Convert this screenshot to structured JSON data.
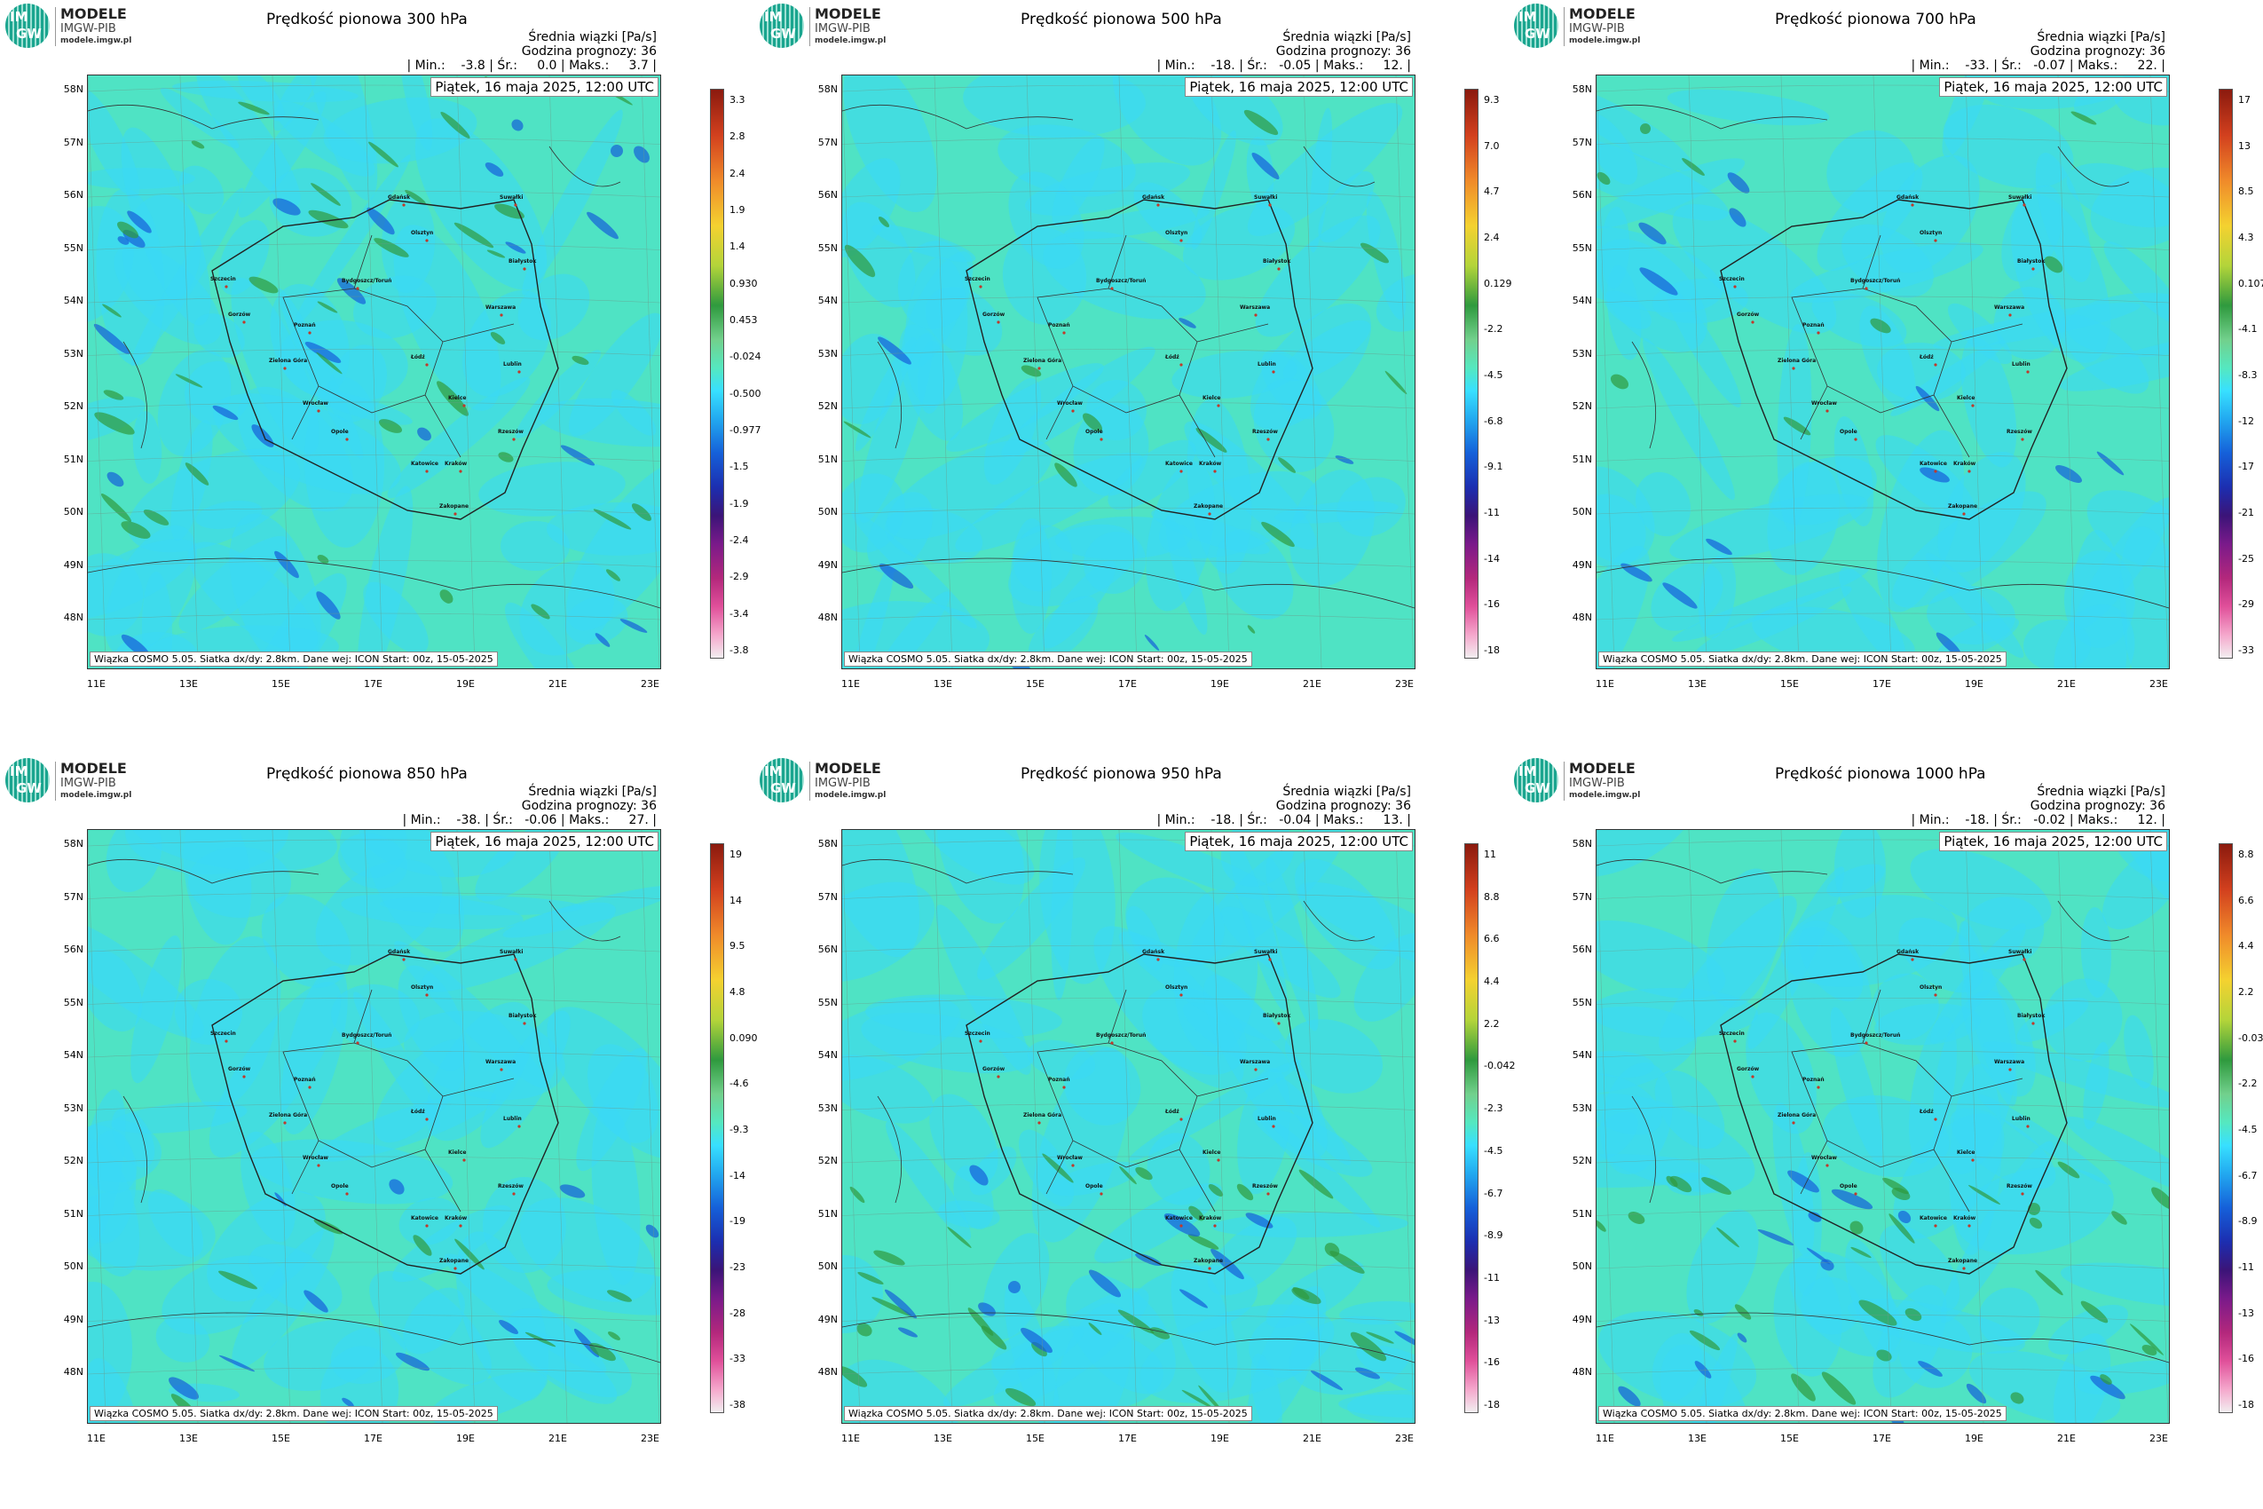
{
  "logo": {
    "im": "IM",
    "gw": "GW",
    "line1": "MODELE",
    "line2": "IMGW-PIB",
    "line3": "modele.imgw.pl"
  },
  "lat_labels": [
    "58N",
    "57N",
    "56N",
    "55N",
    "54N",
    "53N",
    "52N",
    "51N",
    "50N",
    "49N",
    "48N"
  ],
  "lon_labels": [
    "11E",
    "13E",
    "15E",
    "17E",
    "19E",
    "21E",
    "23E"
  ],
  "panels": [
    {
      "title": "Prędkość pionowa 300 hPa",
      "hdr1": "Średnia wiązki [Pa/s]",
      "hdr2": "Godzina prognozy: 36",
      "hdr3": "| Min.:    -3.8 | Śr.:     0.0 | Maks.:     3.7 |",
      "date": "Piątek, 16 maja 2025, 12:00 UTC",
      "foot": "Wiązka COSMO 5.05. Siatka dx/dy: 2.8km. Dane wej: ICON Start: 00z, 15-05-2025",
      "colorbar": [
        "3.3",
        "2.8",
        "2.4",
        "1.9",
        "1.4",
        "0.930",
        "0.453",
        "-0.024",
        "-0.500",
        "-0.977",
        "-1.5",
        "-1.9",
        "-2.4",
        "-2.9",
        "-3.4",
        "-3.8"
      ]
    },
    {
      "title": "Prędkość pionowa 500 hPa",
      "hdr1": "Średnia wiązki [Pa/s]",
      "hdr2": "Godzina prognozy: 36",
      "hdr3": "| Min.:    -18. | Śr.:   -0.05 | Maks.:     12. |",
      "date": "Piątek, 16 maja 2025, 12:00 UTC",
      "foot": "Wiązka COSMO 5.05. Siatka dx/dy: 2.8km. Dane wej: ICON Start: 00z, 15-05-2025",
      "colorbar": [
        "9.3",
        "7.0",
        "4.7",
        "2.4",
        "0.129",
        "-2.2",
        "-4.5",
        "-6.8",
        "-9.1",
        "-11",
        "-14",
        "-16",
        "-18"
      ]
    },
    {
      "title": "Prędkość pionowa 700 hPa",
      "hdr1": "Średnia wiązki [Pa/s]",
      "hdr2": "Godzina prognozy: 36",
      "hdr3": "| Min.:    -33. | Śr.:   -0.07 | Maks.:     22. |",
      "date": "Piątek, 16 maja 2025, 12:00 UTC",
      "foot": "Wiązka COSMO 5.05. Siatka dx/dy: 2.8km. Dane wej: ICON Start: 00z, 15-05-2025",
      "colorbar": [
        "17",
        "13",
        "8.5",
        "4.3",
        "0.107",
        "-4.1",
        "-8.3",
        "-12",
        "-17",
        "-21",
        "-25",
        "-29",
        "-33"
      ]
    },
    {
      "title": "Prędkość pionowa 850 hPa",
      "hdr1": "Średnia wiązki [Pa/s]",
      "hdr2": "Godzina prognozy: 36",
      "hdr3": "| Min.:    -38. | Śr.:   -0.06 | Maks.:     27. |",
      "date": "Piątek, 16 maja 2025, 12:00 UTC",
      "foot": "Wiązka COSMO 5.05. Siatka dx/dy: 2.8km. Dane wej: ICON Start: 00z, 15-05-2025",
      "colorbar": [
        "19",
        "14",
        "9.5",
        "4.8",
        "0.090",
        "-4.6",
        "-9.3",
        "-14",
        "-19",
        "-23",
        "-28",
        "-33",
        "-38"
      ]
    },
    {
      "title": "Prędkość pionowa 950 hPa",
      "hdr1": "Średnia wiązki [Pa/s]",
      "hdr2": "Godzina prognozy: 36",
      "hdr3": "| Min.:    -18. | Śr.:   -0.04 | Maks.:     13. |",
      "date": "Piątek, 16 maja 2025, 12:00 UTC",
      "foot": "Wiązka COSMO 5.05. Siatka dx/dy: 2.8km. Dane wej: ICON Start: 00z, 15-05-2025",
      "colorbar": [
        "11",
        "8.8",
        "6.6",
        "4.4",
        "2.2",
        "-0.042",
        "-2.3",
        "-4.5",
        "-6.7",
        "-8.9",
        "-11",
        "-13",
        "-16",
        "-18"
      ]
    },
    {
      "title": "Prędkość pionowa 1000 hPa",
      "hdr1": "Średnia wiązki [Pa/s]",
      "hdr2": "Godzina prognozy: 36",
      "hdr3": "| Min.:    -18. | Śr.:   -0.02 | Maks.:     12. |",
      "date": "Piątek, 16 maja 2025, 12:00 UTC",
      "foot": "Wiązka COSMO 5.05. Siatka dx/dy: 2.8km. Dane wej: ICON Start: 00z, 15-05-2025",
      "colorbar": [
        "8.8",
        "6.6",
        "4.4",
        "2.2",
        "-0.033",
        "-2.2",
        "-4.5",
        "-6.7",
        "-8.9",
        "-11",
        "-13",
        "-16",
        "-18"
      ]
    }
  ],
  "cities": [
    "Gdańsk",
    "Suwałki",
    "Olsztyn",
    "Białystok",
    "Szczecin",
    "Bydgoszcz/Toruń",
    "Gorzów",
    "Poznań",
    "Warszawa",
    "Zielona Góra",
    "Łódź",
    "Lublin",
    "Wrocław",
    "Kielce",
    "Opole",
    "Katowice",
    "Kraków",
    "Rzeszów",
    "Zakopane"
  ],
  "colors": {
    "background_field": "#4fe3c4",
    "shading": "#3ad9f5",
    "accent_positive": "#2f9a3e",
    "accent_negative": "#1560d9"
  }
}
